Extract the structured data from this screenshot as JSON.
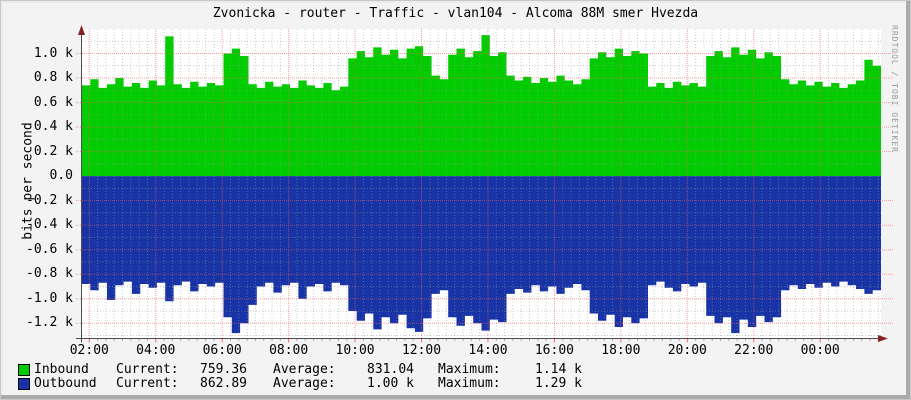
{
  "watermark": "RRDTOOL / TOBI OETIKER",
  "colors": {
    "background": "#f3f3f3",
    "plot_background": "#ffffff",
    "grid_major": "#f25f5f",
    "grid_minor": "#9a9a9a",
    "axis": "#4d4d4d",
    "arrow": "#8a1f1f",
    "text": "#000000",
    "watermark": "#9a9a9a"
  },
  "chart_data": {
    "type": "area",
    "title": "Zvonicka - router - Traffic - vlan104 - Alcoma 88M smer Hvezda",
    "ylabel": "bits per second",
    "xlabel": "",
    "grid": true,
    "legend_position": "bottom",
    "ylim": [
      -1320,
      1200
    ],
    "xlim_hours": [
      1.78,
      25.83
    ],
    "sample_interval_minutes": 15,
    "start_time": "02:00",
    "y_ticks": [
      {
        "label": "1.0 k",
        "value": 1000
      },
      {
        "label": "0.8 k",
        "value": 800
      },
      {
        "label": "0.6 k",
        "value": 600
      },
      {
        "label": "0.4 k",
        "value": 400
      },
      {
        "label": "0.2 k",
        "value": 200
      },
      {
        "label": "0.0",
        "value": 0
      },
      {
        "label": "-0.2 k",
        "value": -200
      },
      {
        "label": "-0.4 k",
        "value": -400
      },
      {
        "label": "-0.6 k",
        "value": -600
      },
      {
        "label": "-0.8 k",
        "value": -800
      },
      {
        "label": "-1.0 k",
        "value": -1000
      },
      {
        "label": "-1.2 k",
        "value": -1200
      }
    ],
    "x_ticks": [
      {
        "label": "02:00",
        "hour": 2
      },
      {
        "label": "04:00",
        "hour": 4
      },
      {
        "label": "06:00",
        "hour": 6
      },
      {
        "label": "08:00",
        "hour": 8
      },
      {
        "label": "10:00",
        "hour": 10
      },
      {
        "label": "12:00",
        "hour": 12
      },
      {
        "label": "14:00",
        "hour": 14
      },
      {
        "label": "16:00",
        "hour": 16
      },
      {
        "label": "18:00",
        "hour": 18
      },
      {
        "label": "20:00",
        "hour": 20
      },
      {
        "label": "22:00",
        "hour": 22
      },
      {
        "label": "00:00",
        "hour": 24
      }
    ],
    "series": [
      {
        "name": "Inbound",
        "color": "#00cc00",
        "direction": "positive",
        "unit": "bits/s",
        "values": [
          740,
          790,
          720,
          750,
          800,
          730,
          760,
          720,
          780,
          740,
          1140,
          750,
          720,
          770,
          730,
          760,
          740,
          1000,
          1040,
          980,
          750,
          720,
          770,
          730,
          750,
          720,
          780,
          740,
          720,
          760,
          700,
          730,
          960,
          1020,
          970,
          1050,
          990,
          1030,
          960,
          1040,
          1060,
          980,
          820,
          790,
          990,
          1040,
          970,
          1020,
          1150,
          980,
          1010,
          820,
          780,
          810,
          760,
          800,
          770,
          820,
          780,
          750,
          790,
          960,
          1010,
          970,
          1040,
          980,
          1020,
          1000,
          730,
          760,
          720,
          770,
          740,
          760,
          730,
          980,
          1020,
          970,
          1050,
          990,
          1030,
          960,
          1010,
          980,
          790,
          750,
          780,
          740,
          770,
          730,
          760,
          720,
          750,
          780,
          950,
          900,
          760
        ]
      },
      {
        "name": "Outbound",
        "color": "#1733a6",
        "direction": "negative",
        "unit": "bits/s",
        "values": [
          880,
          930,
          870,
          1010,
          890,
          860,
          960,
          880,
          910,
          870,
          1020,
          890,
          860,
          940,
          880,
          900,
          870,
          1150,
          1280,
          1200,
          1050,
          900,
          870,
          950,
          890,
          870,
          1000,
          900,
          880,
          940,
          870,
          890,
          1100,
          1180,
          1120,
          1250,
          1150,
          1200,
          1130,
          1240,
          1270,
          1160,
          960,
          930,
          1150,
          1220,
          1140,
          1200,
          1260,
          1170,
          1190,
          960,
          920,
          950,
          890,
          940,
          900,
          960,
          910,
          880,
          930,
          1120,
          1180,
          1130,
          1230,
          1150,
          1200,
          1160,
          890,
          860,
          910,
          940,
          880,
          900,
          870,
          1140,
          1200,
          1150,
          1280,
          1170,
          1230,
          1140,
          1190,
          1150,
          930,
          890,
          920,
          880,
          910,
          870,
          900,
          860,
          890,
          920,
          960,
          930,
          863
        ]
      }
    ],
    "legend_labels": {
      "current": "Current:",
      "average": "Average:",
      "maximum": "Maximum:"
    },
    "legend": [
      {
        "name": "Inbound",
        "color": "#00cc00",
        "current": "759.36",
        "average": "831.04",
        "maximum": "1.14 k"
      },
      {
        "name": "Outbound",
        "color": "#1733a6",
        "current": "862.89",
        "average": "1.00 k",
        "maximum": "1.29 k"
      }
    ]
  }
}
